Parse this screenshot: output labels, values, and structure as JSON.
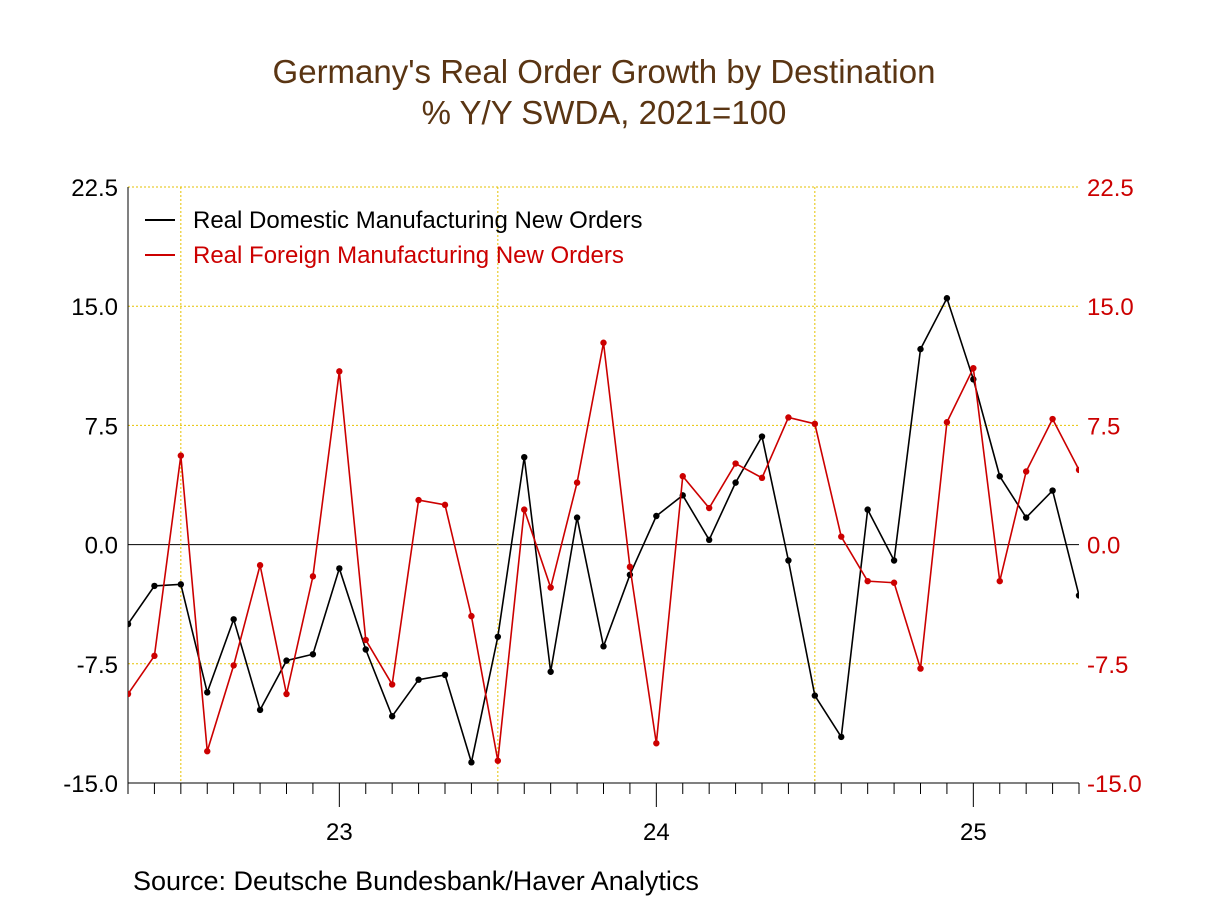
{
  "chart_data": {
    "type": "line",
    "title": "Germany's Real Order Growth by Destination",
    "subtitle": "% Y/Y   SWDA, 2021=100",
    "source": "Source:  Deutsche Bundesbank/Haver Analytics",
    "ylim": [
      -15.0,
      22.5
    ],
    "yticks": [
      "22.5",
      "15.0",
      "7.5",
      "0.0",
      "-7.5",
      "-15.0"
    ],
    "xlim": [
      "2022-11",
      "2025-11"
    ],
    "year_labels": [
      {
        "label": "23",
        "date": "2023-07"
      },
      {
        "label": "24",
        "date": "2024-07"
      },
      {
        "label": "25",
        "date": "2025-07"
      }
    ],
    "grid": true,
    "legend_position": "top-left",
    "months": [
      "2022-11",
      "2022-12",
      "2023-01",
      "2023-02",
      "2023-03",
      "2023-04",
      "2023-05",
      "2023-06",
      "2023-07",
      "2023-08",
      "2023-09",
      "2023-10",
      "2023-11",
      "2023-12",
      "2024-01",
      "2024-02",
      "2024-03",
      "2024-04",
      "2024-05",
      "2024-06",
      "2024-07",
      "2024-08",
      "2024-09",
      "2024-10",
      "2024-11",
      "2024-12",
      "2025-01",
      "2025-02",
      "2025-03",
      "2025-04",
      "2025-05",
      "2025-06",
      "2025-07",
      "2025-08",
      "2025-09",
      "2025-10",
      "2025-11",
      "2025-12",
      "2026-01"
    ],
    "series": [
      {
        "name": "Real Domestic Manufacturing New Orders",
        "color": "#000000",
        "values": [
          -5.0,
          -2.6,
          -2.5,
          -9.3,
          -4.7,
          -10.4,
          -7.3,
          -6.9,
          -1.5,
          -6.6,
          -10.8,
          -8.5,
          -8.2,
          -13.7,
          -5.8,
          5.5,
          -8.0,
          1.7,
          -6.4,
          -1.9,
          1.8,
          3.1,
          0.3,
          3.9,
          6.8,
          -1.0,
          -9.5,
          -12.1,
          2.2,
          -1.0,
          12.3,
          15.5,
          10.4,
          4.3,
          1.7,
          3.4,
          -3.2
        ]
      },
      {
        "name": "Real Foreign Manufacturing New Orders",
        "color": "#cc0000",
        "values": [
          -9.4,
          -7.0,
          5.6,
          -13.0,
          -7.6,
          -1.3,
          -9.4,
          -2.0,
          10.9,
          -6.0,
          -8.8,
          2.8,
          2.5,
          -4.5,
          -13.6,
          2.2,
          -2.7,
          3.9,
          12.7,
          -1.4,
          -12.5,
          4.3,
          2.3,
          5.1,
          4.2,
          8.0,
          7.6,
          0.5,
          -2.3,
          -2.4,
          -7.8,
          7.7,
          11.1,
          -2.3,
          4.6,
          7.9,
          4.7
        ]
      }
    ]
  }
}
